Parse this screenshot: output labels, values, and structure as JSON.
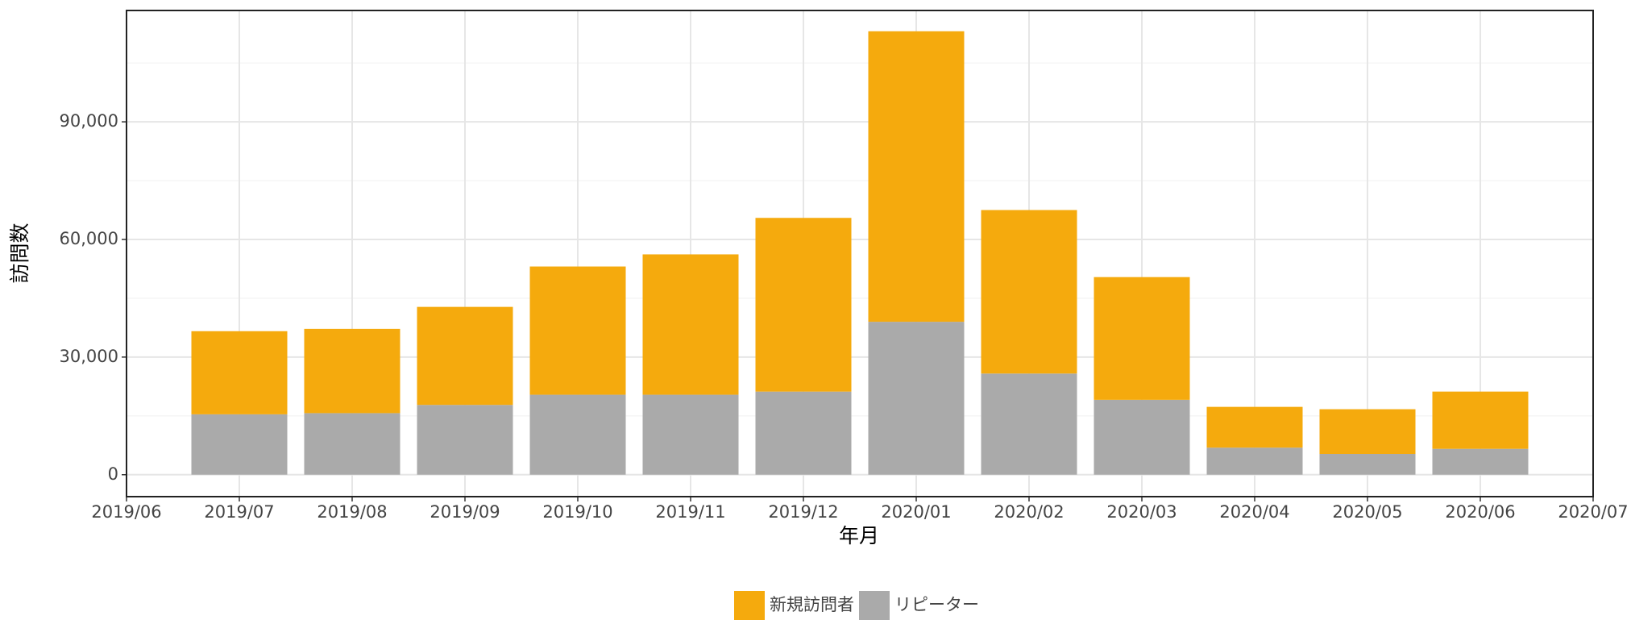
{
  "chart_data": {
    "type": "bar",
    "stacked": true,
    "x": [
      "2019/07",
      "2019/08",
      "2019/09",
      "2019/10",
      "2019/11",
      "2019/12",
      "2020/01",
      "2020/02",
      "2020/03",
      "2020/04",
      "2020/05",
      "2020/06"
    ],
    "series": [
      {
        "name": "リピーター",
        "color": "#aaaaaa",
        "values": [
          15400,
          15700,
          17800,
          20400,
          20400,
          21200,
          39000,
          25800,
          19100,
          6900,
          5300,
          6600
        ]
      },
      {
        "name": "新規訪問者",
        "color": "#f5aa0d",
        "values": [
          21200,
          21500,
          25000,
          32700,
          35800,
          44300,
          74100,
          41700,
          31300,
          10400,
          11400,
          14600
        ]
      }
    ],
    "xlim": [
      "2019/06",
      "2020/07"
    ],
    "xticks": [
      "2019/06",
      "2019/07",
      "2019/08",
      "2019/09",
      "2019/10",
      "2019/11",
      "2019/12",
      "2020/01",
      "2020/02",
      "2020/03",
      "2020/04",
      "2020/05",
      "2020/06",
      "2020/07"
    ],
    "ylim": [
      -5600,
      118400
    ],
    "yticks": [
      0,
      {
        "value": 30000,
        "label": "30,000"
      },
      {
        "value": 60000,
        "label": "60,000"
      },
      {
        "value": 90000,
        "label": "90,000"
      }
    ],
    "xlabel": "年月",
    "ylabel": "訪問数",
    "grid": true,
    "legend": "bottom"
  }
}
